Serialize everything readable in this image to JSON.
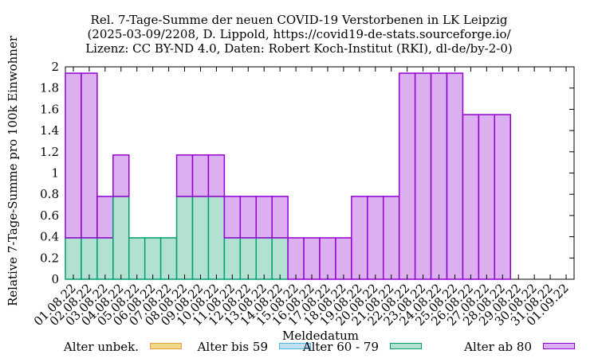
{
  "chart_data": {
    "type": "bar",
    "stacked": true,
    "title": [
      "Rel. 7-Tage-Summe der neuen COVID-19 Verstorbenen in LK Leipzig",
      "(2025-03-09/2208, D. Lippold, https://covid19-de-stats.sourceforge.io/",
      "Lizenz: CC BY-ND 4.0, Daten: Robert Koch-Institut (RKI), dl-de/by-2-0)"
    ],
    "xlabel": "Meldedatum",
    "ylabel": "Relative 7-Tage-Summe pro 100k Einwohner",
    "ylim": [
      0,
      2
    ],
    "yticks": [
      "0",
      "0.2",
      "0.4",
      "0.6",
      "0.8",
      "1",
      "1.2",
      "1.4",
      "1.6",
      "1.8",
      "2"
    ],
    "categories": [
      "01.08.22",
      "02.08.22",
      "03.08.22",
      "04.08.22",
      "05.08.22",
      "06.08.22",
      "07.08.22",
      "08.08.22",
      "09.08.22",
      "10.08.22",
      "11.08.22",
      "12.08.22",
      "13.08.22",
      "14.08.22",
      "15.08.22",
      "16.08.22",
      "17.08.22",
      "18.08.22",
      "19.08.22",
      "20.08.22",
      "21.08.22",
      "22.08.22",
      "23.08.22",
      "24.08.22",
      "25.08.22",
      "26.08.22",
      "27.08.22",
      "28.08.22",
      "29.08.22",
      "30.08.22",
      "31.08.22",
      "01.09.22"
    ],
    "series": [
      {
        "name": "Alter unbek.",
        "color": "#f5d68a",
        "values": [
          0,
          0,
          0,
          0,
          0,
          0,
          0,
          0,
          0,
          0,
          0,
          0,
          0,
          0,
          0,
          0,
          0,
          0,
          0,
          0,
          0,
          0,
          0,
          0,
          0,
          0,
          0,
          0,
          0,
          0,
          0,
          0
        ]
      },
      {
        "name": "Alter bis 59",
        "color": "#bfe0f5",
        "values": [
          0,
          0,
          0,
          0,
          0,
          0,
          0,
          0,
          0,
          0,
          0,
          0,
          0,
          0,
          0,
          0,
          0,
          0,
          0,
          0,
          0,
          0,
          0,
          0,
          0,
          0,
          0,
          0,
          0,
          0,
          0,
          0
        ]
      },
      {
        "name": "Alter 60 - 79",
        "color": "#b3e1d1",
        "values": [
          0.39,
          0.39,
          0.39,
          0.78,
          0.39,
          0.39,
          0.39,
          0.78,
          0.78,
          0.78,
          0.39,
          0.39,
          0.39,
          0.39,
          0,
          0,
          0,
          0,
          0,
          0,
          0,
          0,
          0,
          0,
          0,
          0,
          0,
          0,
          0,
          0,
          0,
          0
        ]
      },
      {
        "name": "Alter ab 80",
        "color": "#dcaff0",
        "values": [
          1.55,
          1.55,
          0.39,
          0.39,
          0,
          0,
          0,
          0.39,
          0.39,
          0.39,
          0.39,
          0.39,
          0.39,
          0.39,
          0.39,
          0.39,
          0.39,
          0.39,
          0.78,
          0.78,
          0.78,
          1.94,
          1.94,
          1.94,
          1.94,
          1.55,
          1.55,
          1.55,
          0,
          0,
          0,
          0
        ]
      }
    ],
    "colors": {
      "Alter unbek.": "#e6a23c",
      "Alter bis 59": "#56b4e9",
      "Alter 60 - 79": "#009e73",
      "Alter ab 80": "#9400d3"
    },
    "legend_position": "bottom"
  }
}
